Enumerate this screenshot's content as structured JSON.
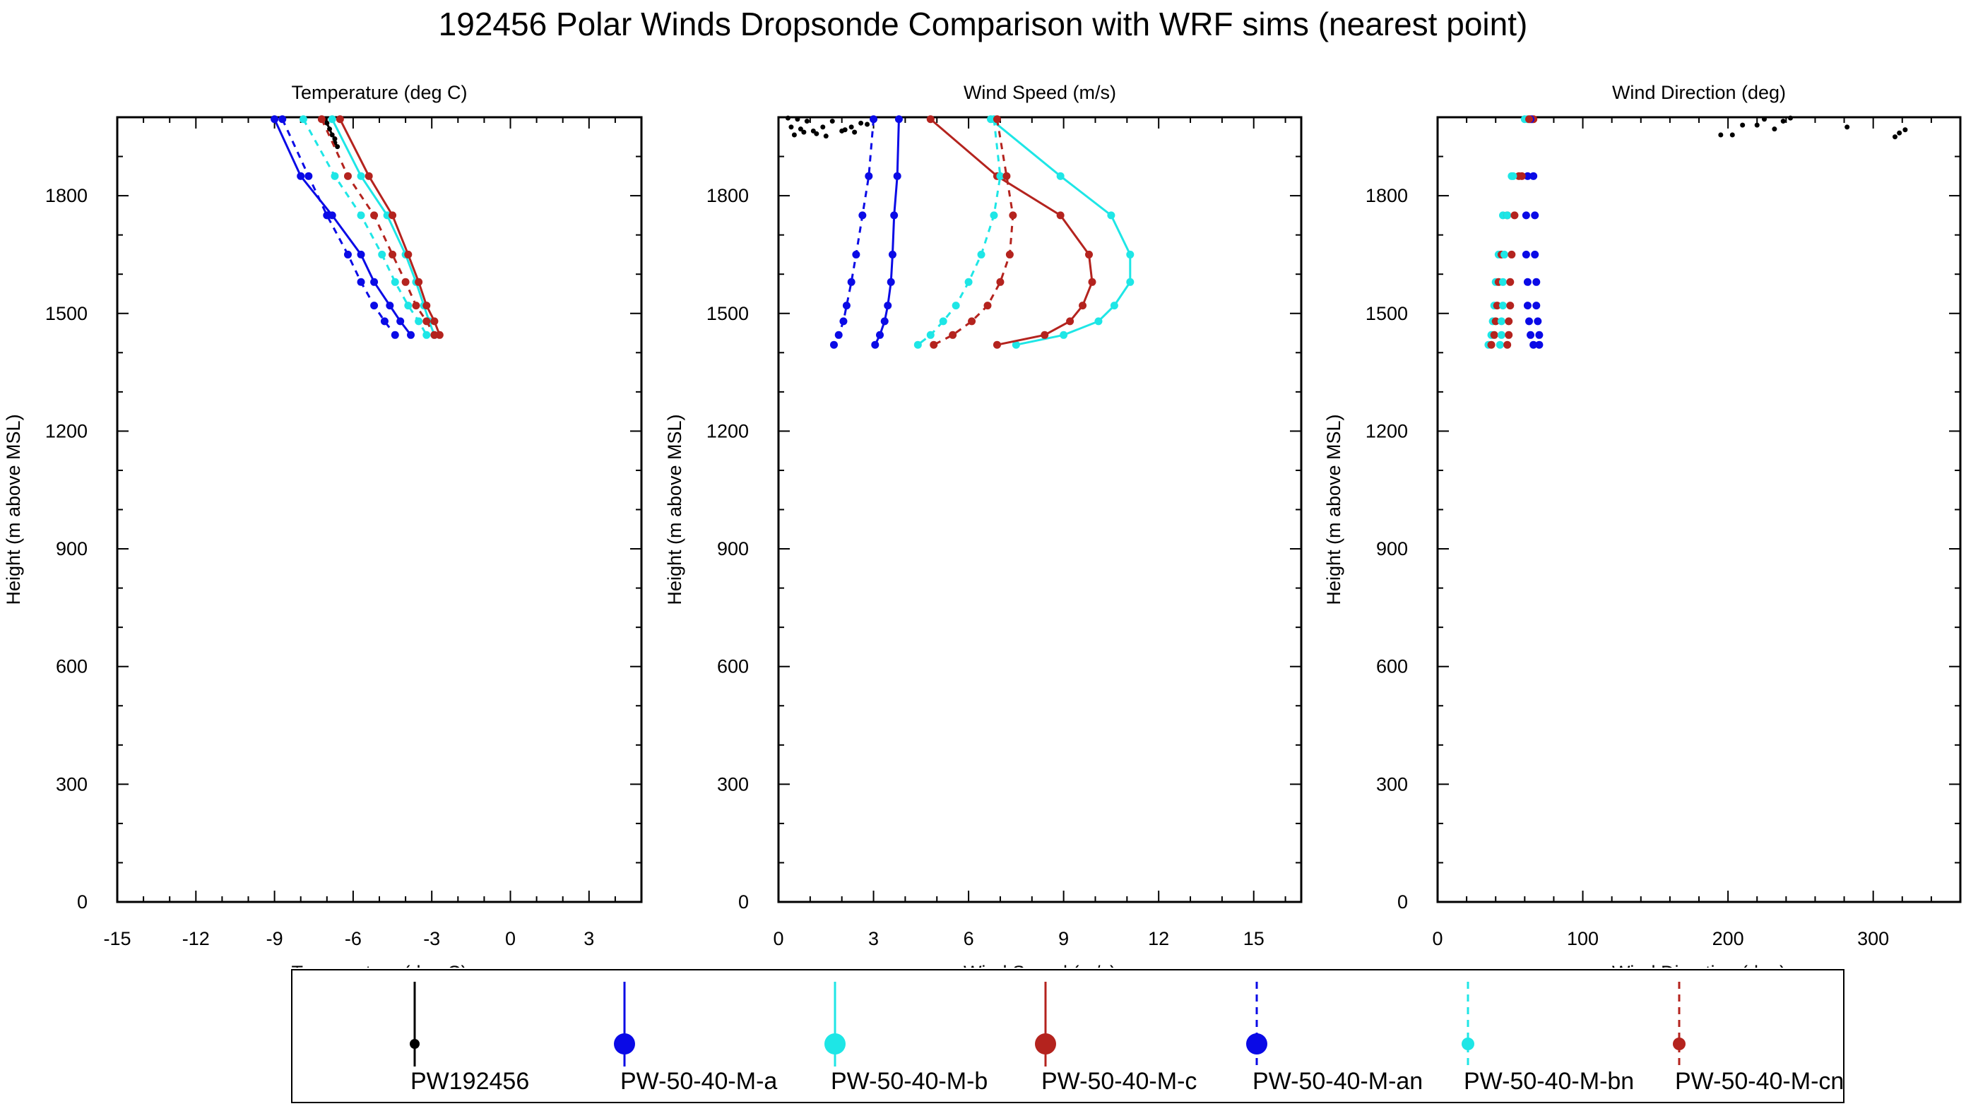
{
  "title": "192456 Polar Winds Dropsonde Comparison with WRF sims (nearest point)",
  "colors": {
    "PW192456": "#000000",
    "a": "#0a0ae6",
    "b": "#1ee6e6",
    "c": "#b4231e"
  },
  "chart_data": [
    {
      "type": "line",
      "title": "Temperature (deg C)",
      "xlabel": "Temperature (deg C)",
      "ylabel": "Height (m above MSL)",
      "xlim": [
        -15,
        5
      ],
      "ylim": [
        0,
        2000
      ],
      "xticks": [
        "-15",
        "-12",
        "-9",
        "-6",
        "-3",
        "0",
        "3"
      ],
      "yticks": [
        "0",
        "300",
        "600",
        "900",
        "1200",
        "1500",
        "1800"
      ],
      "grid": false,
      "series": [
        {
          "name": "PW192456",
          "key": "PW192456",
          "dash": false,
          "marker": "small",
          "x": [
            -7.1,
            -7.0,
            -6.9,
            -6.8,
            -6.7,
            -6.7,
            -6.6
          ],
          "y": [
            1995,
            1985,
            1970,
            1955,
            1945,
            1935,
            1925
          ]
        },
        {
          "name": "PW-50-40-M-a",
          "key": "a",
          "dash": false,
          "marker": "dot",
          "x": [
            -9.0,
            -8.0,
            -6.8,
            -5.7,
            -5.2,
            -4.6,
            -4.2,
            -3.8
          ],
          "y": [
            1995,
            1850,
            1750,
            1650,
            1580,
            1520,
            1480,
            1445
          ]
        },
        {
          "name": "PW-50-40-M-b",
          "key": "b",
          "dash": false,
          "marker": "dot",
          "x": [
            -6.8,
            -5.7,
            -4.7,
            -4.0,
            -3.6,
            -3.3,
            -3.1,
            -2.9
          ],
          "y": [
            1995,
            1850,
            1750,
            1650,
            1580,
            1520,
            1480,
            1445
          ]
        },
        {
          "name": "PW-50-40-M-c",
          "key": "c",
          "dash": false,
          "marker": "dot",
          "x": [
            -6.5,
            -5.4,
            -4.5,
            -3.9,
            -3.5,
            -3.2,
            -2.9,
            -2.7
          ],
          "y": [
            1995,
            1850,
            1750,
            1650,
            1580,
            1520,
            1480,
            1445
          ]
        },
        {
          "name": "PW-50-40-M-an",
          "key": "a",
          "dash": true,
          "marker": "dot",
          "x": [
            -8.7,
            -7.7,
            -7.0,
            -6.2,
            -5.7,
            -5.2,
            -4.8,
            -4.4
          ],
          "y": [
            1995,
            1850,
            1750,
            1650,
            1580,
            1520,
            1480,
            1445
          ]
        },
        {
          "name": "PW-50-40-M-bn",
          "key": "b",
          "dash": true,
          "marker": "dot",
          "x": [
            -7.9,
            -6.7,
            -5.7,
            -4.9,
            -4.4,
            -3.9,
            -3.5,
            -3.2
          ],
          "y": [
            1995,
            1850,
            1750,
            1650,
            1580,
            1520,
            1480,
            1445
          ]
        },
        {
          "name": "PW-50-40-M-cn",
          "key": "c",
          "dash": true,
          "marker": "dot",
          "x": [
            -7.2,
            -6.2,
            -5.2,
            -4.5,
            -4.0,
            -3.6,
            -3.2,
            -2.9
          ],
          "y": [
            1995,
            1850,
            1750,
            1650,
            1580,
            1520,
            1480,
            1445
          ]
        }
      ]
    },
    {
      "type": "line",
      "title": "Wind Speed (m/s)",
      "xlabel": "Wind Speed (m/s)",
      "ylabel": "Height (m above MSL)",
      "xlim": [
        0,
        16.5
      ],
      "ylim": [
        0,
        2000
      ],
      "xticks": [
        "0",
        "3",
        "6",
        "9",
        "12",
        "15"
      ],
      "yticks": [
        "0",
        "300",
        "600",
        "900",
        "1200",
        "1500",
        "1800"
      ],
      "grid": false,
      "series": [
        {
          "name": "PW192456",
          "key": "PW192456",
          "dash": false,
          "marker": "scatter",
          "x": [
            0.3,
            0.6,
            0.9,
            0.4,
            0.7,
            1.1,
            1.4,
            1.7,
            2.0,
            2.3,
            2.6,
            2.4,
            0.5,
            0.8,
            1.2,
            1.5,
            2.1,
            2.8
          ],
          "y": [
            1998,
            1995,
            1990,
            1975,
            1970,
            1965,
            1975,
            1990,
            1965,
            1975,
            1985,
            1962,
            1955,
            1962,
            1958,
            1952,
            1968,
            1982
          ]
        },
        {
          "name": "PW-50-40-M-a",
          "key": "a",
          "dash": false,
          "marker": "dot",
          "x": [
            3.8,
            3.75,
            3.65,
            3.6,
            3.55,
            3.45,
            3.35,
            3.2,
            3.05
          ],
          "y": [
            1995,
            1850,
            1750,
            1650,
            1580,
            1520,
            1480,
            1445,
            1420
          ]
        },
        {
          "name": "PW-50-40-M-b",
          "key": "b",
          "dash": false,
          "marker": "dot",
          "x": [
            6.7,
            8.9,
            10.5,
            11.1,
            11.1,
            10.6,
            10.1,
            9.0,
            7.5
          ],
          "y": [
            1995,
            1850,
            1750,
            1650,
            1580,
            1520,
            1480,
            1445,
            1420
          ]
        },
        {
          "name": "PW-50-40-M-c",
          "key": "c",
          "dash": false,
          "marker": "dot",
          "x": [
            4.8,
            6.9,
            8.9,
            9.8,
            9.9,
            9.6,
            9.2,
            8.4,
            6.9
          ],
          "y": [
            1995,
            1850,
            1750,
            1650,
            1580,
            1520,
            1480,
            1445,
            1420
          ]
        },
        {
          "name": "PW-50-40-M-an",
          "key": "a",
          "dash": true,
          "marker": "dot",
          "x": [
            3.0,
            2.85,
            2.65,
            2.45,
            2.3,
            2.15,
            2.05,
            1.9,
            1.75
          ],
          "y": [
            1995,
            1850,
            1750,
            1650,
            1580,
            1520,
            1480,
            1445,
            1420
          ]
        },
        {
          "name": "PW-50-40-M-bn",
          "key": "b",
          "dash": true,
          "marker": "dot",
          "x": [
            6.8,
            7.0,
            6.8,
            6.4,
            6.0,
            5.6,
            5.2,
            4.8,
            4.4
          ],
          "y": [
            1995,
            1850,
            1750,
            1650,
            1580,
            1520,
            1480,
            1445,
            1420
          ]
        },
        {
          "name": "PW-50-40-M-cn",
          "key": "c",
          "dash": true,
          "marker": "dot",
          "x": [
            6.9,
            7.2,
            7.4,
            7.3,
            7.0,
            6.6,
            6.1,
            5.5,
            4.9
          ],
          "y": [
            1995,
            1850,
            1750,
            1650,
            1580,
            1520,
            1480,
            1445,
            1420
          ]
        }
      ]
    },
    {
      "type": "scatter",
      "title": "Wind Direction (deg)",
      "xlabel": "Wind Direction (deg)",
      "ylabel": "Height (m above MSL)",
      "xlim": [
        0,
        360
      ],
      "ylim": [
        0,
        2000
      ],
      "xticks": [
        "0",
        "100",
        "200",
        "300"
      ],
      "yticks": [
        "0",
        "300",
        "600",
        "900",
        "1200",
        "1500",
        "1800"
      ],
      "grid": false,
      "series": [
        {
          "name": "PW192456",
          "key": "PW192456",
          "marker": "small",
          "x": [
            195,
            203,
            210,
            220,
            225,
            232,
            238,
            243,
            282,
            315,
            318,
            322
          ],
          "y": [
            1955,
            1955,
            1980,
            1980,
            1995,
            1970,
            1990,
            1998,
            1975,
            1950,
            1960,
            1968
          ]
        },
        {
          "name": "PW-50-40-M-a",
          "key": "a",
          "marker": "dot",
          "x": [
            65,
            66,
            67,
            67,
            68,
            68,
            69,
            70,
            70
          ],
          "y": [
            1995,
            1850,
            1750,
            1650,
            1580,
            1520,
            1480,
            1445,
            1420
          ]
        },
        {
          "name": "PW-50-40-M-b",
          "key": "b",
          "marker": "dot",
          "x": [
            62,
            51,
            45,
            42,
            40,
            39,
            38,
            37,
            35
          ],
          "y": [
            1995,
            1850,
            1750,
            1650,
            1580,
            1520,
            1480,
            1445,
            1420
          ]
        },
        {
          "name": "PW-50-40-M-c",
          "key": "c",
          "marker": "dot",
          "x": [
            66,
            56,
            48,
            44,
            42,
            41,
            40,
            39,
            37
          ],
          "y": [
            1995,
            1850,
            1750,
            1650,
            1580,
            1520,
            1480,
            1445,
            1420
          ]
        },
        {
          "name": "PW-50-40-M-an",
          "key": "a",
          "marker": "dot",
          "x": [
            64,
            62,
            61,
            61,
            62,
            62,
            63,
            64,
            66
          ],
          "y": [
            1995,
            1850,
            1750,
            1650,
            1580,
            1520,
            1480,
            1445,
            1420
          ]
        },
        {
          "name": "PW-50-40-M-bn",
          "key": "b",
          "marker": "dot",
          "x": [
            60,
            52,
            48,
            46,
            45,
            45,
            44,
            44,
            43
          ],
          "y": [
            1995,
            1850,
            1750,
            1650,
            1580,
            1520,
            1480,
            1445,
            1420
          ]
        },
        {
          "name": "PW-50-40-M-cn",
          "key": "c",
          "marker": "dot",
          "x": [
            63,
            58,
            53,
            51,
            50,
            50,
            49,
            49,
            48
          ],
          "y": [
            1995,
            1850,
            1750,
            1650,
            1580,
            1520,
            1480,
            1445,
            1420
          ]
        }
      ]
    }
  ],
  "legend": [
    {
      "label": "PW192456",
      "key": "PW192456",
      "style": "small"
    },
    {
      "label": "PW-50-40-M-a",
      "key": "a",
      "style": "big"
    },
    {
      "label": "PW-50-40-M-b",
      "key": "b",
      "style": "big"
    },
    {
      "label": "PW-50-40-M-c",
      "key": "c",
      "style": "big"
    },
    {
      "label": "PW-50-40-M-an",
      "key": "a",
      "style": "big-dash"
    },
    {
      "label": "PW-50-40-M-bn",
      "key": "b",
      "style": "small-dash"
    },
    {
      "label": "PW-50-40-M-cn",
      "key": "c",
      "style": "small-dash"
    }
  ]
}
